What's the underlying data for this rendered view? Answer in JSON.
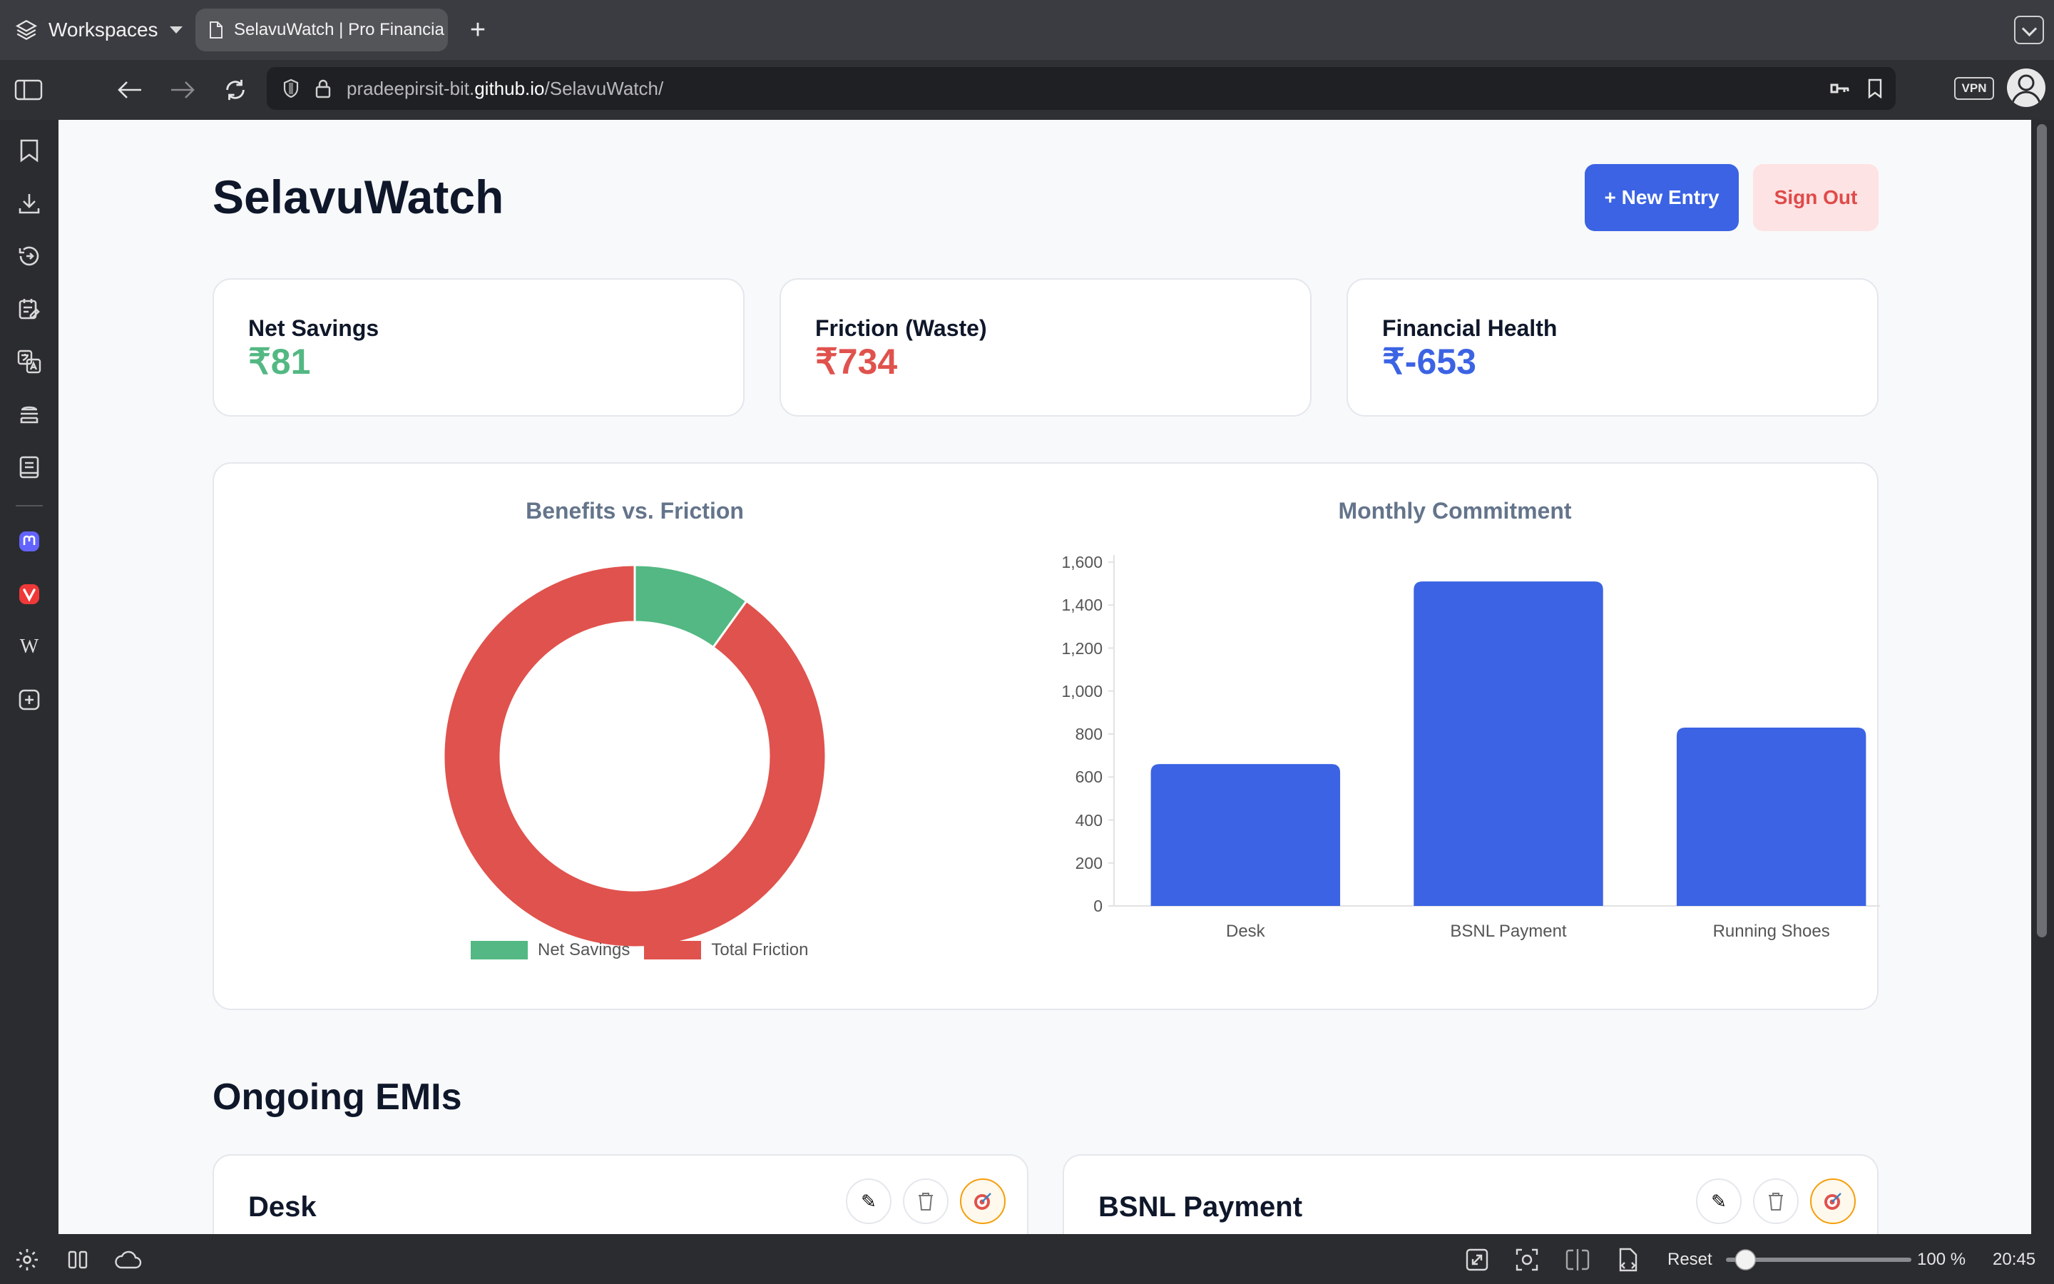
{
  "browser": {
    "workspaces_label": "Workspaces",
    "tab_title": "SelavuWatch | Pro Financia",
    "url_prefix": "pradeepirsit-bit.",
    "url_domain": "github.io",
    "url_path": "/SelavuWatch/",
    "vpn_label": "VPN",
    "status": {
      "reset_label": "Reset",
      "zoom": "100 %",
      "zoom_fraction": 0.05,
      "clock": "20:45"
    }
  },
  "app": {
    "title": "SelavuWatch",
    "new_entry_label": "+ New Entry",
    "sign_out_label": "Sign Out"
  },
  "stats": [
    {
      "label": "Net Savings",
      "value": "₹81",
      "color": "#53b883"
    },
    {
      "label": "Friction (Waste)",
      "value": "₹734",
      "color": "#e0524d"
    },
    {
      "label": "Financial Health",
      "value": "₹-653",
      "color": "#3b63e3"
    }
  ],
  "chart_data": [
    {
      "type": "pie",
      "title": "Benefits vs. Friction",
      "categories": [
        "Net Savings",
        "Total Friction"
      ],
      "values": [
        81,
        734
      ],
      "colors": [
        "#53b883",
        "#e0524d"
      ],
      "donut": true,
      "legend": "bottom"
    },
    {
      "type": "bar",
      "title": "Monthly Commitment",
      "categories": [
        "Desk",
        "BSNL Payment",
        "Running Shoes"
      ],
      "values": [
        660,
        1510,
        830
      ],
      "ylim": [
        0,
        1600
      ],
      "yticks": [
        "0",
        "200",
        "400",
        "600",
        "800",
        "1,000",
        "1,200",
        "1,400",
        "1,600"
      ],
      "color": "#3b63e3",
      "grid": false
    }
  ],
  "emis": {
    "section_title": "Ongoing EMIs",
    "items": [
      {
        "name": "Desk"
      },
      {
        "name": "BSNL Payment"
      }
    ]
  }
}
